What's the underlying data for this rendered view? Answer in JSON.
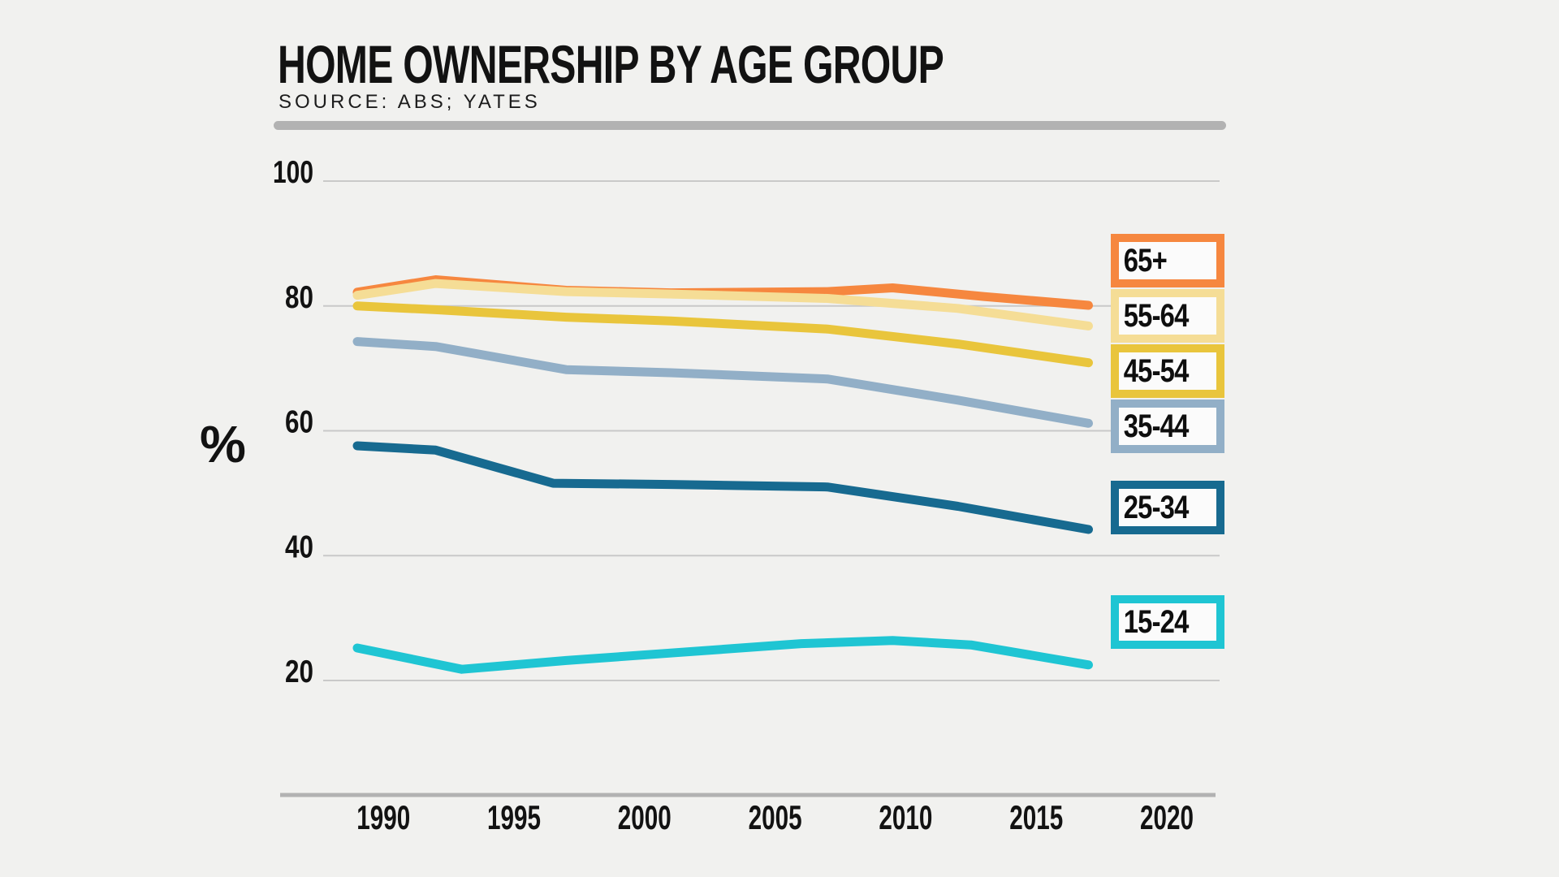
{
  "chart_data": {
    "type": "line",
    "title": "HOME OWNERSHIP BY AGE GROUP",
    "source": "SOURCE: ABS; YATES",
    "ylabel": "%",
    "x_ticks": [
      1990,
      1995,
      2000,
      2005,
      2010,
      2015,
      2020
    ],
    "y_ticks": [
      100,
      80,
      60,
      40,
      20
    ],
    "xlim": [
      1988,
      2022.5
    ],
    "ylim": [
      0,
      100
    ],
    "grid": "horizontal-only",
    "legend_position": "right",
    "series": [
      {
        "name": "65+",
        "color": "#F6873F",
        "points": [
          [
            1989,
            82.2
          ],
          [
            1992,
            84.2
          ],
          [
            1997,
            82.5
          ],
          [
            2001,
            82.1
          ],
          [
            2007,
            82.3
          ],
          [
            2009.5,
            82.9
          ],
          [
            2013,
            81.5
          ],
          [
            2017,
            80.1
          ]
        ]
      },
      {
        "name": "55-64",
        "color": "#F5DD96",
        "points": [
          [
            1989,
            81.7
          ],
          [
            1992,
            83.6
          ],
          [
            1997,
            82.3
          ],
          [
            2001,
            81.9
          ],
          [
            2007,
            81.2
          ],
          [
            2012,
            79.6
          ],
          [
            2017,
            76.8
          ]
        ]
      },
      {
        "name": "45-54",
        "color": "#E9C53C",
        "points": [
          [
            1989,
            80.0
          ],
          [
            1992,
            79.4
          ],
          [
            1997,
            78.2
          ],
          [
            2001,
            77.6
          ],
          [
            2007,
            76.3
          ],
          [
            2012,
            73.9
          ],
          [
            2017,
            70.9
          ]
        ]
      },
      {
        "name": "35-44",
        "color": "#92AFC7",
        "points": [
          [
            1989,
            74.3
          ],
          [
            1992,
            73.5
          ],
          [
            1997,
            69.8
          ],
          [
            2001,
            69.3
          ],
          [
            2007,
            68.3
          ],
          [
            2012,
            64.9
          ],
          [
            2017,
            61.2
          ]
        ]
      },
      {
        "name": "25-34",
        "color": "#176A90",
        "points": [
          [
            1989,
            57.6
          ],
          [
            1992,
            56.9
          ],
          [
            1996.5,
            51.6
          ],
          [
            2001,
            51.4
          ],
          [
            2007,
            51.0
          ],
          [
            2012,
            47.9
          ],
          [
            2017,
            44.2
          ]
        ]
      },
      {
        "name": "15-24",
        "color": "#1FC5D3",
        "points": [
          [
            1989,
            25.2
          ],
          [
            1993,
            21.8
          ],
          [
            1997,
            23.2
          ],
          [
            2001,
            24.4
          ],
          [
            2006,
            25.9
          ],
          [
            2009.5,
            26.4
          ],
          [
            2012.5,
            25.7
          ],
          [
            2017,
            22.5
          ]
        ]
      }
    ],
    "legend_labels": [
      "65+",
      "55-64",
      "45-54",
      "35-44",
      "25-34",
      "15-24"
    ]
  },
  "colors": {
    "background": "#F1F1EF",
    "grid": "#C9C9C9",
    "axis": "#B2B2B2",
    "text": "#121212",
    "legend_fill": "#FBFBFB"
  }
}
